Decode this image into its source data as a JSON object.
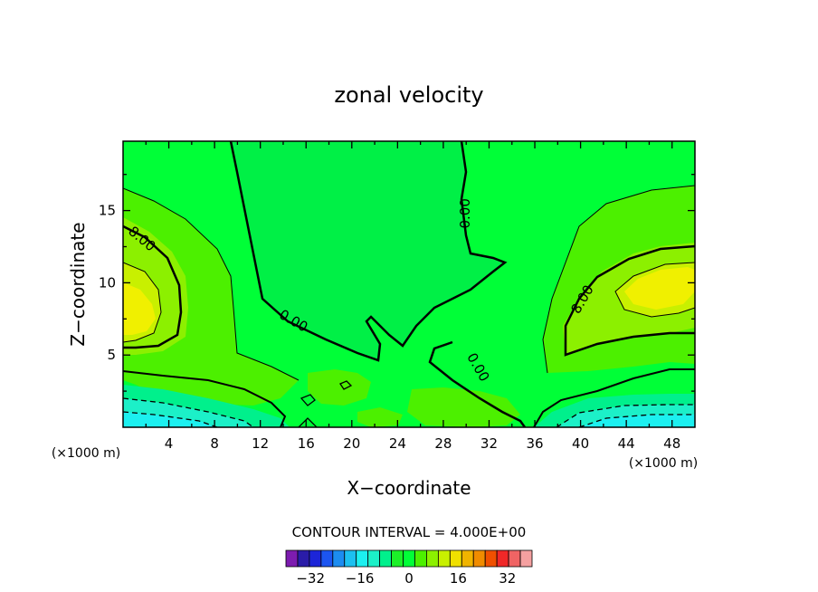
{
  "chart_data": {
    "type": "heatmap",
    "title": "zonal velocity",
    "xlabel": "X−coordinate",
    "ylabel": "Z−coordinate",
    "x_unit": "(×1000 m)",
    "y_unit": "(×1000 m)",
    "xlim": [
      0,
      50
    ],
    "ylim": [
      0,
      19.8
    ],
    "x_ticks": [
      4,
      8,
      12,
      16,
      20,
      24,
      28,
      32,
      36,
      40,
      44,
      48
    ],
    "y_ticks": [
      5,
      10,
      15
    ],
    "contour_interval_text": "CONTOUR INTERVAL = 4.000E+00",
    "contour_interval": 4,
    "contour_labels": [
      {
        "text": "8.00",
        "x": 1.4,
        "y": 12.8
      },
      {
        "text": "0.00",
        "x": 14.7,
        "y": 7.1
      },
      {
        "text": "0.00",
        "x": 30.3,
        "y": 14.8
      },
      {
        "text": "0.00",
        "x": 30.7,
        "y": 4.0
      },
      {
        "text": "8.00",
        "x": 40.5,
        "y": 8.7
      }
    ],
    "colorbar": {
      "levels": [
        -36,
        -32,
        -28,
        -24,
        -20,
        -16,
        -12,
        -8,
        -4,
        0,
        4,
        8,
        12,
        16,
        20,
        24,
        28,
        32,
        36
      ],
      "tick_values": [
        -32,
        -16,
        0,
        16,
        32
      ],
      "tick_labels": [
        "−32",
        "−16",
        "0",
        "16",
        "32"
      ],
      "colors": [
        "#7d1cb0",
        "#2a1ca8",
        "#1c25d8",
        "#1c55f0",
        "#1c8cf0",
        "#1cc0f0",
        "#1cf0f0",
        "#1cf0c8",
        "#00f08c",
        "#1cf028",
        "#00ff37",
        "#4cf000",
        "#8cf000",
        "#c8f000",
        "#f0e000",
        "#f0b400",
        "#f08c00",
        "#f05000",
        "#f02828",
        "#f06464",
        "#f5a0a0"
      ]
    },
    "regions": [
      {
        "level": 0,
        "color": "#00ff37",
        "description": "background zone"
      },
      {
        "level": 4,
        "color": "#4cf000"
      },
      {
        "level": 8,
        "color": "#8cf000"
      },
      {
        "level": 12,
        "color": "#c8f000"
      },
      {
        "level": 16,
        "color": "#f0f000"
      },
      {
        "level": -4,
        "color": "#00f08c"
      },
      {
        "level": -8,
        "color": "#1cf0c8"
      },
      {
        "level": -12,
        "color": "#1cf0f0"
      }
    ]
  }
}
